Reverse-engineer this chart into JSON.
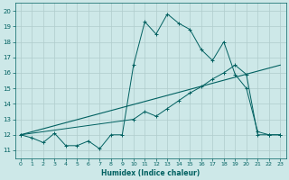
{
  "xlabel": "Humidex (Indice chaleur)",
  "ylabel": "",
  "xlim": [
    -0.5,
    23.5
  ],
  "ylim": [
    10.5,
    20.5
  ],
  "yticks": [
    11,
    12,
    13,
    14,
    15,
    16,
    17,
    18,
    19,
    20
  ],
  "xticks": [
    0,
    1,
    2,
    3,
    4,
    5,
    6,
    7,
    8,
    9,
    10,
    11,
    12,
    13,
    14,
    15,
    16,
    17,
    18,
    19,
    20,
    21,
    22,
    23
  ],
  "background_color": "#cde8e8",
  "grid_color": "#b0cccc",
  "line_color": "#006060",
  "series1_x": [
    0,
    1,
    2,
    3,
    4,
    5,
    6,
    7,
    8,
    9,
    10,
    11,
    12,
    13,
    14,
    15,
    16,
    17,
    18,
    19,
    20,
    21,
    22,
    23
  ],
  "series1_y": [
    12.0,
    11.8,
    11.5,
    12.1,
    11.3,
    11.3,
    11.6,
    11.1,
    12.0,
    12.0,
    16.5,
    19.3,
    18.5,
    19.8,
    19.2,
    18.8,
    17.5,
    16.8,
    18.0,
    15.9,
    15.0,
    12.2,
    12.0,
    12.0
  ],
  "series2_x": [
    0,
    10,
    11,
    12,
    13,
    14,
    15,
    16,
    17,
    18,
    19,
    20,
    21,
    22,
    23
  ],
  "series2_y": [
    12.0,
    13.0,
    13.5,
    13.2,
    13.7,
    14.2,
    14.7,
    15.1,
    15.6,
    16.0,
    16.5,
    15.9,
    12.0,
    12.0,
    12.0
  ],
  "series3_x": [
    0,
    23
  ],
  "series3_y": [
    12.0,
    16.5
  ]
}
